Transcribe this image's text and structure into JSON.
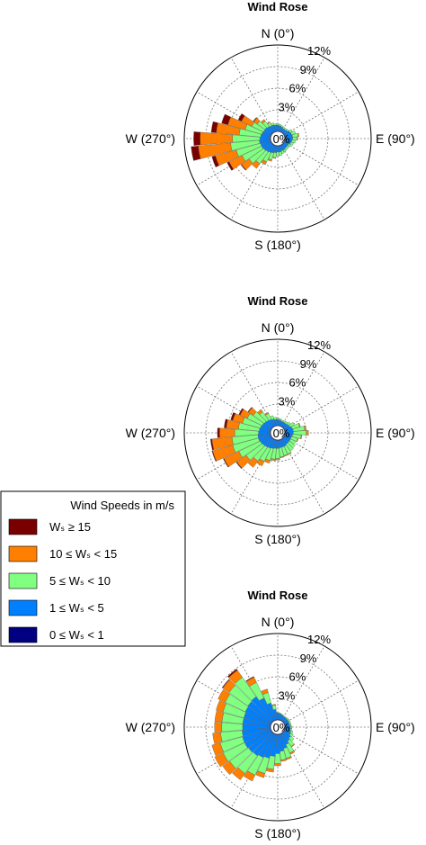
{
  "legend": {
    "title": "Wind Speeds in m/s",
    "entries": [
      {
        "label": "Wₛ ≥ 15",
        "color": "#7a0000"
      },
      {
        "label": "10 ≤ Wₛ < 15",
        "color": "#ff7f00"
      },
      {
        "label": "5 ≤ Wₛ < 10",
        "color": "#80ff80"
      },
      {
        "label": "1 ≤ Wₛ < 5",
        "color": "#0080ff"
      },
      {
        "label": "0 ≤ Wₛ < 1",
        "color": "#000080"
      }
    ]
  },
  "chart_data": [
    {
      "type": "polar-stacked-bar",
      "title": "Wind Rose",
      "direction_labels": [
        "N (0°)",
        "E (90°)",
        "S (180°)",
        "W (270°)"
      ],
      "radial_ticks": [
        3,
        6,
        9,
        12
      ],
      "radial_labels": [
        "0%",
        "3%",
        "6%",
        "9%",
        "12%"
      ],
      "rmax": 12,
      "direction_step_deg": 10,
      "series_names": [
        "0 ≤ Wₛ < 1",
        "1 ≤ Wₛ < 5",
        "5 ≤ Wₛ < 10",
        "10 ≤ Wₛ < 15",
        "Wₛ ≥ 15"
      ],
      "bins": [
        {
          "dir": 0,
          "values": [
            0.1,
            0.8,
            0.2,
            0,
            0
          ]
        },
        {
          "dir": 10,
          "values": [
            0.1,
            0.7,
            0.2,
            0,
            0
          ]
        },
        {
          "dir": 20,
          "values": [
            0.1,
            0.6,
            0.2,
            0,
            0
          ]
        },
        {
          "dir": 30,
          "values": [
            0.1,
            0.5,
            0.2,
            0,
            0
          ]
        },
        {
          "dir": 40,
          "values": [
            0.1,
            0.5,
            0.2,
            0,
            0
          ]
        },
        {
          "dir": 50,
          "values": [
            0.1,
            0.6,
            0.2,
            0,
            0
          ]
        },
        {
          "dir": 60,
          "values": [
            0.1,
            0.8,
            0.4,
            0,
            0
          ]
        },
        {
          "dir": 70,
          "values": [
            0.1,
            0.9,
            0.6,
            0,
            0
          ]
        },
        {
          "dir": 80,
          "values": [
            0.1,
            1.0,
            0.8,
            0.1,
            0
          ]
        },
        {
          "dir": 90,
          "values": [
            0.1,
            1.0,
            0.6,
            0.1,
            0
          ]
        },
        {
          "dir": 100,
          "values": [
            0.1,
            0.9,
            0.5,
            0,
            0
          ]
        },
        {
          "dir": 110,
          "values": [
            0.1,
            0.8,
            0.4,
            0,
            0
          ]
        },
        {
          "dir": 120,
          "values": [
            0.1,
            0.6,
            0.3,
            0,
            0
          ]
        },
        {
          "dir": 130,
          "values": [
            0.1,
            0.6,
            0.3,
            0,
            0
          ]
        },
        {
          "dir": 140,
          "values": [
            0.1,
            0.6,
            0.3,
            0,
            0
          ]
        },
        {
          "dir": 150,
          "values": [
            0.1,
            0.7,
            0.3,
            0,
            0
          ]
        },
        {
          "dir": 160,
          "values": [
            0.1,
            0.7,
            0.4,
            0,
            0
          ]
        },
        {
          "dir": 170,
          "values": [
            0.1,
            0.8,
            0.5,
            0,
            0
          ]
        },
        {
          "dir": 180,
          "values": [
            0.1,
            0.8,
            0.6,
            0,
            0
          ]
        },
        {
          "dir": 190,
          "values": [
            0.1,
            0.9,
            0.7,
            0.1,
            0
          ]
        },
        {
          "dir": 200,
          "values": [
            0.1,
            1.0,
            1.0,
            0.2,
            0
          ]
        },
        {
          "dir": 210,
          "values": [
            0.1,
            1.1,
            1.4,
            0.4,
            0
          ]
        },
        {
          "dir": 220,
          "values": [
            0.1,
            1.2,
            2.0,
            0.8,
            0
          ]
        },
        {
          "dir": 230,
          "values": [
            0.1,
            1.3,
            2.5,
            1.3,
            0.1
          ]
        },
        {
          "dir": 240,
          "values": [
            0.1,
            1.4,
            3.0,
            2.0,
            0.3
          ]
        },
        {
          "dir": 250,
          "values": [
            0.1,
            1.4,
            3.5,
            3.0,
            0.5
          ]
        },
        {
          "dir": 260,
          "values": [
            0.1,
            1.5,
            4.0,
            4.5,
            1.0
          ]
        },
        {
          "dir": 270,
          "values": [
            0.1,
            1.4,
            3.8,
            4.5,
            0.9
          ]
        },
        {
          "dir": 280,
          "values": [
            0.1,
            1.3,
            3.0,
            3.2,
            0.7
          ]
        },
        {
          "dir": 290,
          "values": [
            0.1,
            1.2,
            2.4,
            2.5,
            0.9
          ]
        },
        {
          "dir": 300,
          "values": [
            0.1,
            1.1,
            1.8,
            1.6,
            0.5
          ]
        },
        {
          "dir": 310,
          "values": [
            0.1,
            1.1,
            1.3,
            0.6,
            0.1
          ]
        },
        {
          "dir": 320,
          "values": [
            0.1,
            1.0,
            0.9,
            0.3,
            0
          ]
        },
        {
          "dir": 330,
          "values": [
            0.1,
            0.9,
            0.5,
            0.1,
            0
          ]
        },
        {
          "dir": 340,
          "values": [
            0.1,
            0.9,
            0.3,
            0,
            0
          ]
        },
        {
          "dir": 350,
          "values": [
            0.1,
            0.8,
            0.2,
            0,
            0
          ]
        }
      ]
    },
    {
      "type": "polar-stacked-bar",
      "title": "Wind Rose",
      "direction_labels": [
        "N (0°)",
        "E (90°)",
        "S (180°)",
        "W (270°)"
      ],
      "radial_ticks": [
        3,
        6,
        9,
        12
      ],
      "radial_labels": [
        "0%",
        "3%",
        "6%",
        "9%",
        "12%"
      ],
      "rmax": 12,
      "direction_step_deg": 10,
      "series_names": [
        "0 ≤ Wₛ < 1",
        "1 ≤ Wₛ < 5",
        "5 ≤ Wₛ < 10",
        "10 ≤ Wₛ < 15",
        "Wₛ ≥ 15"
      ],
      "bins": [
        {
          "dir": 0,
          "values": [
            0.1,
            0.8,
            0.2,
            0,
            0
          ]
        },
        {
          "dir": 10,
          "values": [
            0.1,
            0.7,
            0.2,
            0,
            0
          ]
        },
        {
          "dir": 20,
          "values": [
            0.1,
            0.6,
            0.2,
            0,
            0
          ]
        },
        {
          "dir": 30,
          "values": [
            0.1,
            0.6,
            0.2,
            0,
            0
          ]
        },
        {
          "dir": 40,
          "values": [
            0.1,
            0.6,
            0.3,
            0,
            0
          ]
        },
        {
          "dir": 50,
          "values": [
            0.1,
            0.7,
            0.4,
            0,
            0
          ]
        },
        {
          "dir": 60,
          "values": [
            0.1,
            0.8,
            0.7,
            0,
            0
          ]
        },
        {
          "dir": 70,
          "values": [
            0.1,
            1.0,
            1.1,
            0.1,
            0
          ]
        },
        {
          "dir": 80,
          "values": [
            0.1,
            1.1,
            1.6,
            0.2,
            0
          ]
        },
        {
          "dir": 90,
          "values": [
            0.1,
            1.1,
            1.8,
            0.3,
            0
          ]
        },
        {
          "dir": 100,
          "values": [
            0.1,
            1.0,
            1.2,
            0.1,
            0
          ]
        },
        {
          "dir": 110,
          "values": [
            0.1,
            0.9,
            0.9,
            0.1,
            0
          ]
        },
        {
          "dir": 120,
          "values": [
            0.1,
            0.9,
            0.8,
            0,
            0
          ]
        },
        {
          "dir": 130,
          "values": [
            0.1,
            0.9,
            1.0,
            0,
            0
          ]
        },
        {
          "dir": 140,
          "values": [
            0.1,
            0.9,
            1.1,
            0,
            0
          ]
        },
        {
          "dir": 150,
          "values": [
            0.1,
            1.0,
            1.2,
            0.1,
            0
          ]
        },
        {
          "dir": 160,
          "values": [
            0.1,
            1.0,
            1.2,
            0.1,
            0
          ]
        },
        {
          "dir": 170,
          "values": [
            0.1,
            1.0,
            1.3,
            0.1,
            0
          ]
        },
        {
          "dir": 180,
          "values": [
            0.1,
            1.1,
            1.4,
            0.2,
            0
          ]
        },
        {
          "dir": 190,
          "values": [
            0.1,
            1.1,
            1.5,
            0.2,
            0
          ]
        },
        {
          "dir": 200,
          "values": [
            0.1,
            1.2,
            1.7,
            0.4,
            0
          ]
        },
        {
          "dir": 210,
          "values": [
            0.1,
            1.3,
            2.0,
            0.7,
            0
          ]
        },
        {
          "dir": 220,
          "values": [
            0.1,
            1.4,
            2.3,
            1.1,
            0
          ]
        },
        {
          "dir": 230,
          "values": [
            0.1,
            1.5,
            2.8,
            1.6,
            0.1
          ]
        },
        {
          "dir": 240,
          "values": [
            0.1,
            1.6,
            3.3,
            2.3,
            0.1
          ]
        },
        {
          "dir": 250,
          "values": [
            0.1,
            1.7,
            3.7,
            2.9,
            0.1
          ]
        },
        {
          "dir": 260,
          "values": [
            0.1,
            1.7,
            3.6,
            2.8,
            0.2
          ]
        },
        {
          "dir": 270,
          "values": [
            0.1,
            1.6,
            3.3,
            2.1,
            0.3
          ]
        },
        {
          "dir": 280,
          "values": [
            0.1,
            1.5,
            2.9,
            1.7,
            0.3
          ]
        },
        {
          "dir": 290,
          "values": [
            0.1,
            1.4,
            2.6,
            1.4,
            0.3
          ]
        },
        {
          "dir": 300,
          "values": [
            0.1,
            1.3,
            2.3,
            1.1,
            0.2
          ]
        },
        {
          "dir": 310,
          "values": [
            0.1,
            1.2,
            1.9,
            0.8,
            0.1
          ]
        },
        {
          "dir": 320,
          "values": [
            0.1,
            1.1,
            1.4,
            0.4,
            0
          ]
        },
        {
          "dir": 330,
          "values": [
            0.1,
            1.0,
            0.9,
            0.2,
            0
          ]
        },
        {
          "dir": 340,
          "values": [
            0.1,
            0.9,
            0.5,
            0,
            0
          ]
        },
        {
          "dir": 350,
          "values": [
            0.1,
            0.8,
            0.3,
            0,
            0
          ]
        }
      ]
    },
    {
      "type": "polar-stacked-bar",
      "title": "Wind Rose",
      "direction_labels": [
        "N (0°)",
        "E (90°)",
        "S (180°)",
        "W (270°)"
      ],
      "radial_ticks": [
        3,
        6,
        9,
        12
      ],
      "radial_labels": [
        "0%",
        "3%",
        "6%",
        "9%",
        "12%"
      ],
      "rmax": 12,
      "direction_step_deg": 10,
      "series_names": [
        "0 ≤ Wₛ < 1",
        "1 ≤ Wₛ < 5",
        "5 ≤ Wₛ < 10",
        "10 ≤ Wₛ < 15",
        "Wₛ ≥ 15"
      ],
      "bins": [
        {
          "dir": 0,
          "values": [
            0.1,
            0.9,
            0.1,
            0,
            0
          ]
        },
        {
          "dir": 10,
          "values": [
            0.1,
            0.8,
            0.1,
            0,
            0
          ]
        },
        {
          "dir": 20,
          "values": [
            0.1,
            0.7,
            0.1,
            0,
            0
          ]
        },
        {
          "dir": 30,
          "values": [
            0.1,
            0.6,
            0.1,
            0,
            0
          ]
        },
        {
          "dir": 40,
          "values": [
            0.1,
            0.6,
            0.1,
            0,
            0
          ]
        },
        {
          "dir": 50,
          "values": [
            0.1,
            0.6,
            0.2,
            0,
            0
          ]
        },
        {
          "dir": 60,
          "values": [
            0.1,
            0.6,
            0.2,
            0,
            0
          ]
        },
        {
          "dir": 70,
          "values": [
            0.1,
            0.6,
            0.2,
            0,
            0
          ]
        },
        {
          "dir": 80,
          "values": [
            0.1,
            0.6,
            0.2,
            0,
            0
          ]
        },
        {
          "dir": 90,
          "values": [
            0.1,
            0.7,
            0.2,
            0,
            0
          ]
        },
        {
          "dir": 100,
          "values": [
            0.1,
            0.7,
            0.2,
            0,
            0
          ]
        },
        {
          "dir": 110,
          "values": [
            0.1,
            0.8,
            0.3,
            0,
            0
          ]
        },
        {
          "dir": 120,
          "values": [
            0.1,
            0.9,
            0.4,
            0,
            0
          ]
        },
        {
          "dir": 130,
          "values": [
            0.1,
            1.1,
            0.6,
            0,
            0
          ]
        },
        {
          "dir": 140,
          "values": [
            0.1,
            1.3,
            0.9,
            0.1,
            0
          ]
        },
        {
          "dir": 150,
          "values": [
            0.1,
            1.6,
            1.3,
            0.2,
            0
          ]
        },
        {
          "dir": 160,
          "values": [
            0.1,
            2.0,
            1.4,
            0.2,
            0
          ]
        },
        {
          "dir": 170,
          "values": [
            0.1,
            2.3,
            1.2,
            0.2,
            0
          ]
        },
        {
          "dir": 180,
          "values": [
            0.1,
            2.6,
            1.4,
            0.3,
            0
          ]
        },
        {
          "dir": 190,
          "values": [
            0.1,
            3.0,
            1.8,
            0.4,
            0
          ]
        },
        {
          "dir": 200,
          "values": [
            0.1,
            3.4,
            2.2,
            0.6,
            0
          ]
        },
        {
          "dir": 210,
          "values": [
            0.1,
            3.6,
            2.7,
            0.9,
            0
          ]
        },
        {
          "dir": 220,
          "values": [
            0.1,
            3.8,
            3.0,
            1.1,
            0
          ]
        },
        {
          "dir": 230,
          "values": [
            0.1,
            3.9,
            3.2,
            1.2,
            0
          ]
        },
        {
          "dir": 240,
          "values": [
            0.1,
            4.0,
            3.3,
            1.3,
            0
          ]
        },
        {
          "dir": 250,
          "values": [
            0.1,
            4.0,
            3.2,
            1.2,
            0
          ]
        },
        {
          "dir": 260,
          "values": [
            0.1,
            3.9,
            3.0,
            1.1,
            0
          ]
        },
        {
          "dir": 270,
          "values": [
            0.1,
            3.8,
            2.9,
            1.0,
            0
          ]
        },
        {
          "dir": 280,
          "values": [
            0.1,
            3.8,
            2.9,
            1.0,
            0
          ]
        },
        {
          "dir": 290,
          "values": [
            0.1,
            3.8,
            3.0,
            1.0,
            0
          ]
        },
        {
          "dir": 300,
          "values": [
            0.1,
            3.9,
            3.1,
            1.1,
            0
          ]
        },
        {
          "dir": 310,
          "values": [
            0.1,
            4.0,
            3.2,
            1.1,
            0.1
          ]
        },
        {
          "dir": 320,
          "values": [
            0.1,
            4.1,
            3.3,
            1.2,
            0.2
          ]
        },
        {
          "dir": 330,
          "values": [
            0.1,
            3.4,
            2.4,
            0.8,
            0.1
          ]
        },
        {
          "dir": 340,
          "values": [
            0.1,
            2.4,
            1.5,
            0.5,
            0
          ]
        },
        {
          "dir": 350,
          "values": [
            0.1,
            1.4,
            0.6,
            0.1,
            0
          ]
        }
      ]
    }
  ]
}
